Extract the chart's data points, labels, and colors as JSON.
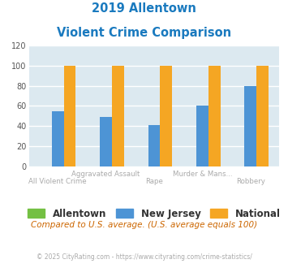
{
  "title_line1": "2019 Allentown",
  "title_line2": "Violent Crime Comparison",
  "categories": [
    "All Violent Crime",
    "Aggravated Assault",
    "Rape",
    "Murder & Mans...",
    "Robbery"
  ],
  "top_labels": [
    "",
    "Aggravated Assault",
    "",
    "Murder & Mans...",
    ""
  ],
  "bottom_labels": [
    "All Violent Crime",
    "",
    "Rape",
    "",
    "Robbery"
  ],
  "series": {
    "Allentown": [
      0,
      0,
      0,
      0,
      0
    ],
    "New Jersey": [
      55,
      49,
      41,
      60,
      80
    ],
    "National": [
      100,
      100,
      100,
      100,
      100
    ]
  },
  "colors": {
    "Allentown": "#74c043",
    "New Jersey": "#4d94d5",
    "National": "#f5a623"
  },
  "ylim": [
    0,
    120
  ],
  "yticks": [
    0,
    20,
    40,
    60,
    80,
    100,
    120
  ],
  "bar_width": 0.25,
  "plot_bg": "#dce9f0",
  "grid_color": "#ffffff",
  "title_color": "#1a7abf",
  "label_color": "#aaaaaa",
  "subtitle_note": "Compared to U.S. average. (U.S. average equals 100)",
  "footnote": "© 2025 CityRating.com - https://www.cityrating.com/crime-statistics/",
  "subtitle_color": "#cc6600",
  "footnote_color": "#aaaaaa"
}
